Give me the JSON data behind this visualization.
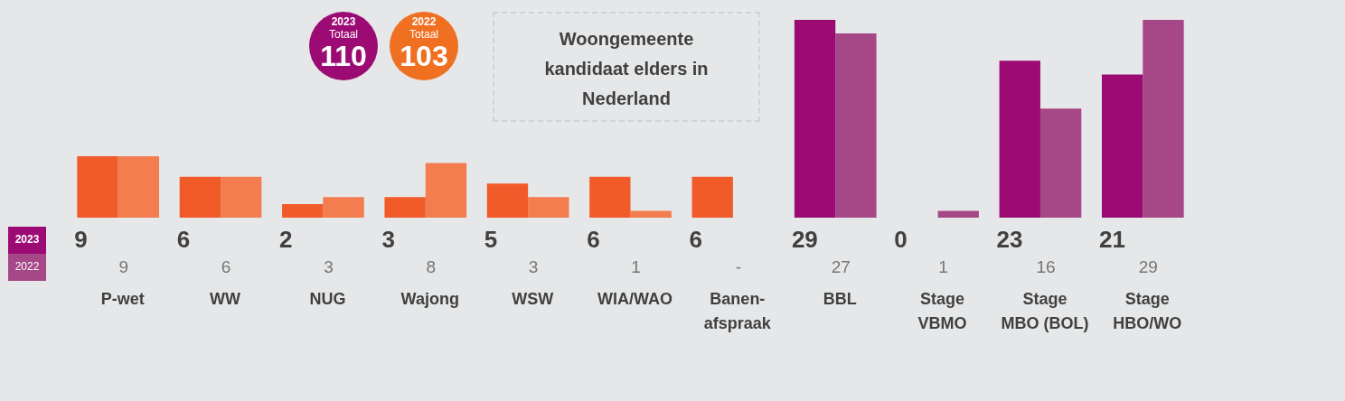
{
  "chart_data": {
    "type": "bar",
    "title": "Woongemeente kandidaat elders in Nederland",
    "categories": [
      "P-wet",
      "WW",
      "NUG",
      "Wajong",
      "WSW",
      "WIA/WAO",
      "Banen-afspraak",
      "BBL",
      "Stage VBMO",
      "Stage MBO (BOL)",
      "Stage HBO/WO"
    ],
    "series": [
      {
        "name": "2023",
        "color": "#9c0b74",
        "colors": [
          "#f15a29",
          "#f15a29",
          "#f15a29",
          "#f15a29",
          "#f15a29",
          "#f15a29",
          "#f15a29",
          "#9c0b74",
          "#d3d4d6",
          "#9c0b74",
          "#9c0b74"
        ],
        "values": [
          9,
          6,
          2,
          3,
          5,
          6,
          6,
          29,
          0,
          23,
          21
        ],
        "value_labels": [
          "9",
          "6",
          "2",
          "3",
          "5",
          "6",
          "6",
          "29",
          "0",
          "23",
          "21"
        ]
      },
      {
        "name": "2022",
        "color": "#a64788",
        "colors": [
          "#f37d4f",
          "#f37d4f",
          "#f37d4f",
          "#f37d4f",
          "#f37d4f",
          "#f37d4f",
          "#d3d4d6",
          "#a64788",
          "#a64788",
          "#a64788",
          "#a64788"
        ],
        "values": [
          9,
          6,
          3,
          8,
          3,
          1,
          0,
          27,
          1,
          16,
          29
        ],
        "value_labels": [
          "9",
          "6",
          "3",
          "8",
          "3",
          "1",
          "-",
          "27",
          "1",
          "16",
          "29"
        ]
      }
    ],
    "annotations": [
      "2023\nTotaal\n110",
      "2022\nTotaal\n103"
    ],
    "legend": "bottom left"
  }
}
